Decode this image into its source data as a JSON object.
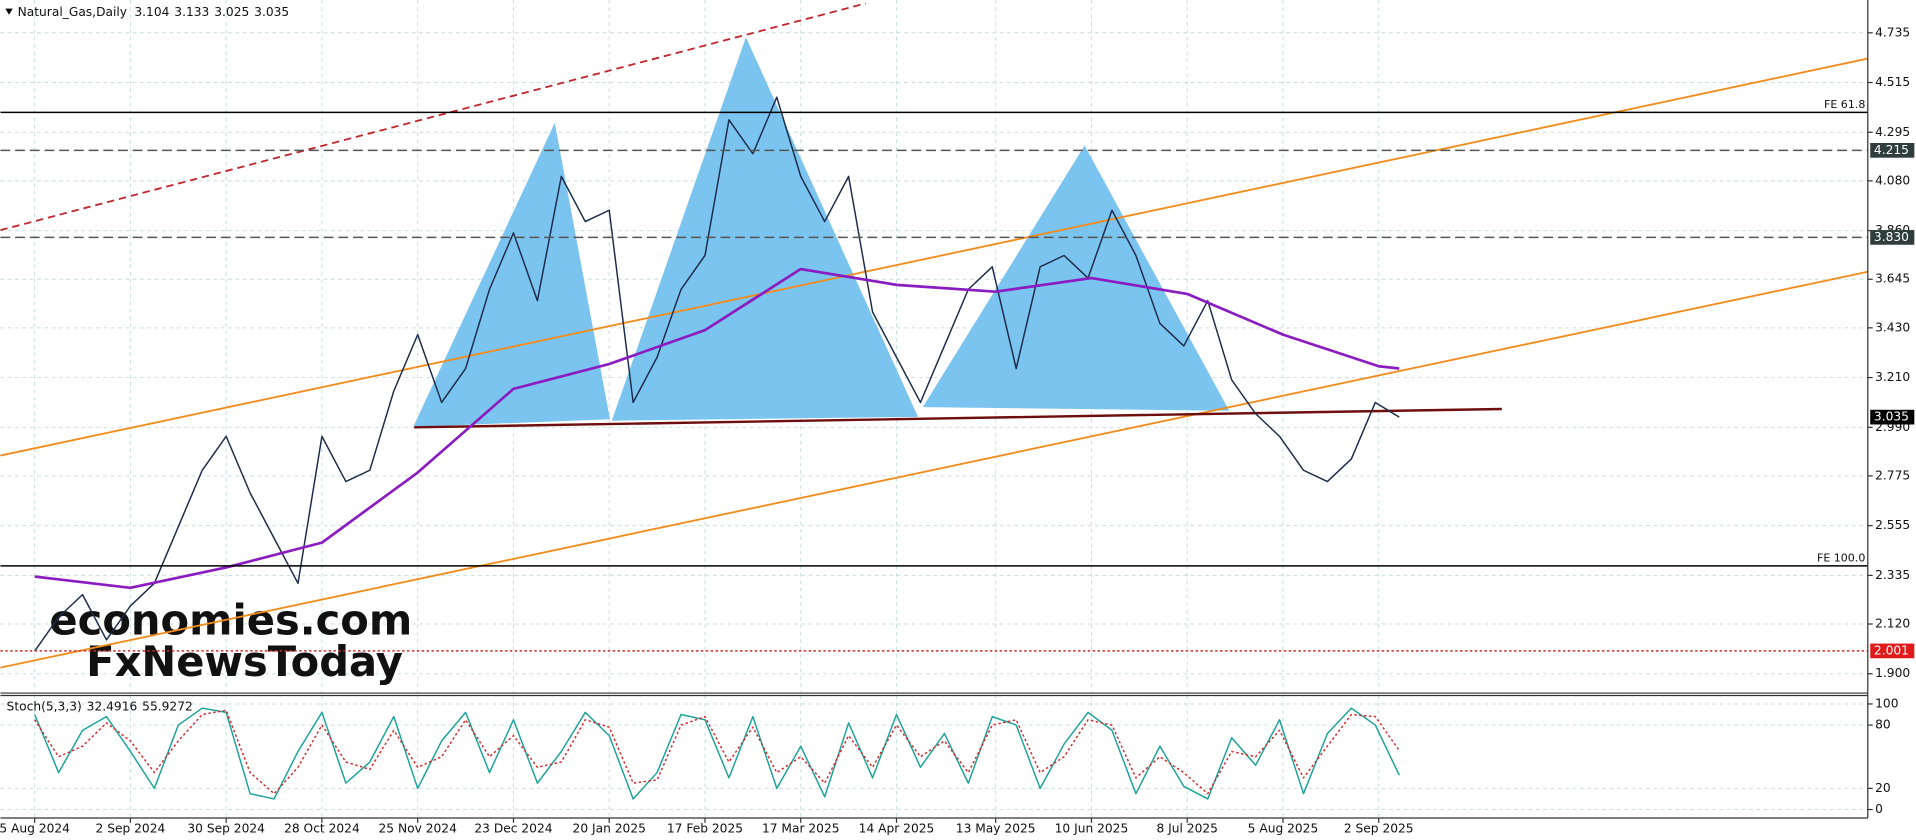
{
  "chart_data": [
    {
      "type": "line",
      "title": "Natural_Gas,Daily",
      "ohlc": [
        3.104,
        3.133,
        3.025,
        3.035
      ],
      "watermark": [
        "economies.com",
        "FxNewsToday"
      ],
      "xlim": [
        "26 Jul 2024",
        "23 Jan 2026"
      ],
      "xticks": [
        "5 Aug 2024",
        "2 Sep 2024",
        "30 Sep 2024",
        "28 Oct 2024",
        "25 Nov 2024",
        "23 Dec 2024",
        "20 Jan 2025",
        "17 Feb 2025",
        "17 Mar 2025",
        "14 Apr 2025",
        "13 May 2025",
        "10 Jun 2025",
        "8 Jul 2025",
        "5 Aug 2025",
        "2 Sep 2025"
      ],
      "ylim": [
        1.82,
        4.88
      ],
      "yticks": [
        4.735,
        4.515,
        4.295,
        {
          "value": 4.08,
          "label": "4.080"
        },
        {
          "value": 3.86,
          "label": "3.860"
        },
        3.645,
        {
          "value": 3.43,
          "label": "3.430"
        },
        {
          "value": 3.21,
          "label": "3.210"
        },
        {
          "value": 2.99,
          "label": "2.990"
        },
        2.775,
        2.555,
        2.335,
        {
          "value": 2.12,
          "label": "2.120"
        },
        {
          "value": 1.9,
          "label": "1.900"
        }
      ],
      "grid": true,
      "series": [
        {
          "color": "#1c2b4a",
          "x": [
            "5 Aug 2024",
            "12 Aug 2024",
            "19 Aug 2024",
            "26 Aug 2024",
            "2 Sep 2024",
            "9 Sep 2024",
            "16 Sep 2024",
            "23 Sep 2024",
            "30 Sep 2024",
            "7 Oct 2024",
            "14 Oct 2024",
            "21 Oct 2024",
            "28 Oct 2024",
            "4 Nov 2024",
            "11 Nov 2024",
            "18 Nov 2024",
            "25 Nov 2024",
            "2 Dec 2024",
            "9 Dec 2024",
            "16 Dec 2024",
            "23 Dec 2024",
            "30 Dec 2024",
            "6 Jan 2025",
            "13 Jan 2025",
            "20 Jan 2025",
            "27 Jan 2025",
            "3 Feb 2025",
            "10 Feb 2025",
            "17 Feb 2025",
            "24 Feb 2025",
            "3 Mar 2025",
            "10 Mar 2025",
            "17 Mar 2025",
            "24 Mar 2025",
            "31 Mar 2025",
            "7 Apr 2025",
            "14 Apr 2025",
            "21 Apr 2025",
            "28 Apr 2025",
            "5 May 2025",
            "12 May 2025",
            "19 May 2025",
            "26 May 2025",
            "2 Jun 2025",
            "9 Jun 2025",
            "16 Jun 2025",
            "23 Jun 2025",
            "30 Jun 2025",
            "7 Jul 2025",
            "14 Jul 2025",
            "21 Jul 2025",
            "28 Jul 2025",
            "4 Aug 2025",
            "11 Aug 2025",
            "18 Aug 2025",
            "25 Aug 2025",
            "1 Sep 2025",
            "8 Sep 2025"
          ],
          "values": [
            2.0,
            2.15,
            2.25,
            2.05,
            2.2,
            2.3,
            2.55,
            2.8,
            2.95,
            2.7,
            2.5,
            2.3,
            2.95,
            2.75,
            2.8,
            3.15,
            3.4,
            3.1,
            3.25,
            3.6,
            3.85,
            3.55,
            4.1,
            3.9,
            3.95,
            3.1,
            3.3,
            3.6,
            3.75,
            4.35,
            4.2,
            4.45,
            4.1,
            3.9,
            4.1,
            3.5,
            3.3,
            3.1,
            3.35,
            3.6,
            3.7,
            3.25,
            3.7,
            3.75,
            3.65,
            3.95,
            3.75,
            3.45,
            3.35,
            3.55,
            3.2,
            3.05,
            2.95,
            2.8,
            2.75,
            2.85,
            3.1,
            3.035
          ]
        },
        {
          "color": "#8a1cc0",
          "x": [
            "5 Aug 2024",
            "2 Sep 2024",
            "30 Sep 2024",
            "28 Oct 2024",
            "25 Nov 2024",
            "23 Dec 2024",
            "20 Jan 2025",
            "17 Feb 2025",
            "17 Mar 2025",
            "14 Apr 2025",
            "13 May 2025",
            "10 Jun 2025",
            "8 Jul 2025",
            "5 Aug 2025",
            "2 Sep 2025",
            "8 Sep 2025"
          ],
          "values": [
            2.33,
            2.28,
            2.37,
            2.48,
            2.79,
            3.16,
            3.27,
            3.42,
            3.69,
            3.62,
            3.59,
            3.65,
            3.58,
            3.4,
            3.26,
            3.25
          ]
        }
      ],
      "levels": [
        {
          "price": 4.383,
          "text": "FE 61.8",
          "style": "solid",
          "color": "#000000"
        },
        {
          "price": 2.377,
          "text": "FE 100.0",
          "style": "solid",
          "color": "#000000"
        },
        {
          "price": 4.215,
          "style": "dashed",
          "color": "#555555",
          "box": "#2f3d3d"
        },
        {
          "price": {
            "value": 3.83,
            "label": "3.830"
          },
          "style": "dashed",
          "color": "#555555",
          "box": "#2f3d3d"
        },
        {
          "price": 2.001,
          "style": "dotted",
          "color": "#d42a2a",
          "box": "#e01b1b"
        }
      ],
      "drawings": [
        {
          "kind": "polygon",
          "color": "#7cc4f0",
          "points": [
            [
              "24 Nov 2024",
              2.995
            ],
            [
              "4 Jan 2025",
              4.328
            ],
            [
              "20 Jan 2025",
              3.028
            ]
          ]
        },
        {
          "kind": "polygon",
          "color": "#7cc4f0",
          "points": [
            [
              "21 Jan 2025",
              3.022
            ],
            [
              "1 Mar 2025",
              4.708
            ],
            [
              "20 Apr 2025",
              3.039
            ]
          ]
        },
        {
          "kind": "polygon",
          "color": "#7cc4f0",
          "points": [
            [
              "22 Apr 2025",
              3.082
            ],
            [
              "8 Jun 2025",
              4.231
            ],
            [
              "20 Jul 2025",
              3.066
            ]
          ]
        },
        {
          "kind": "line",
          "color": "#f28c1c",
          "points": [
            [
              "26 Jul 2024",
              2.865
            ],
            [
              "23 Jan 2026",
              4.621
            ]
          ]
        },
        {
          "kind": "line",
          "color": "#f28c1c",
          "points": [
            [
              "26 Jul 2024",
              1.927
            ],
            [
              "23 Jan 2026",
              3.678
            ]
          ]
        },
        {
          "kind": "line",
          "color": "#c0282d",
          "dash": true,
          "points": [
            [
              "26 Jul 2024",
              3.862
            ],
            [
              "5 Apr 2025",
              4.865
            ]
          ]
        },
        {
          "kind": "line",
          "color": "#6e0e0e",
          "width": 2,
          "points": [
            [
              "24 Nov 2024",
              2.99
            ],
            [
              "8 Oct 2025",
              3.071
            ]
          ]
        }
      ]
    },
    {
      "type": "line",
      "title": "Stoch(5,3,3)",
      "ylim": [
        -8,
        108
      ],
      "yticks": [
        100,
        80,
        20,
        0
      ],
      "series": [
        {
          "color": "#1aa39a",
          "values": [
            90,
            35,
            75,
            88,
            55,
            20,
            80,
            96,
            92,
            15,
            10,
            55,
            92,
            25,
            45,
            88,
            20,
            65,
            92,
            35,
            85,
            25,
            55,
            92,
            70,
            10,
            35,
            90,
            85,
            30,
            88,
            20,
            60,
            12,
            82,
            30,
            90,
            40,
            72,
            25,
            88,
            80,
            20,
            62,
            92,
            75,
            15,
            60,
            22,
            10,
            68,
            42,
            85,
            15,
            72,
            96,
            80,
            32.4916
          ]
        },
        {
          "color": "#d42a2a",
          "dash": true,
          "values": [
            85,
            50,
            60,
            82,
            65,
            35,
            65,
            90,
            94,
            35,
            15,
            40,
            80,
            45,
            38,
            75,
            40,
            50,
            85,
            50,
            70,
            40,
            45,
            85,
            78,
            25,
            28,
            80,
            88,
            45,
            78,
            35,
            50,
            25,
            70,
            40,
            80,
            50,
            65,
            35,
            80,
            85,
            35,
            50,
            85,
            80,
            30,
            50,
            35,
            15,
            55,
            50,
            75,
            30,
            60,
            90,
            88,
            55.9272
          ]
        }
      ]
    }
  ]
}
